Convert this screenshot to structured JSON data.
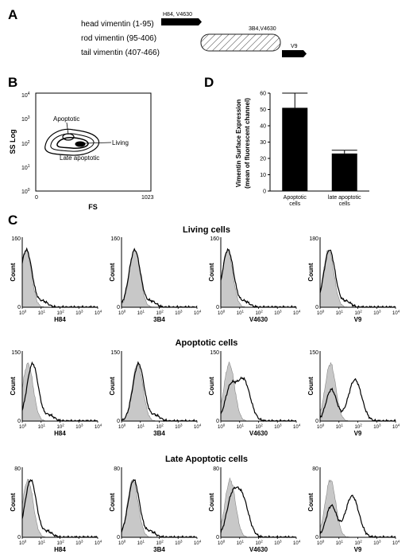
{
  "panel_labels": {
    "a": "A",
    "b": "B",
    "c": "C",
    "d": "D"
  },
  "panel_a": {
    "rows": [
      {
        "label": "head vimentin (1-95)",
        "antibody": "H84, V4630"
      },
      {
        "label": "rod vimentin (95-406)",
        "antibody": "3B4,V4630"
      },
      {
        "label": "tail vimentin (407-466)",
        "antibody": "V9"
      }
    ]
  },
  "panel_b": {
    "x_label": "FS",
    "y_label": "SS Log",
    "x_ticks": [
      "0",
      "1023"
    ],
    "y_ticks": [
      {
        "base": "10",
        "exp": "0"
      },
      {
        "base": "10",
        "exp": "1"
      },
      {
        "base": "10",
        "exp": "2"
      },
      {
        "base": "10",
        "exp": "3"
      },
      {
        "base": "10",
        "exp": "4"
      }
    ],
    "annotations": [
      "Apoptotic",
      "Living",
      "Late apoptotic"
    ]
  },
  "chart_data": [
    {
      "type": "bar",
      "panel": "D",
      "categories": [
        "Apoptotic cells",
        "late apoptotic cells"
      ],
      "category_lines": [
        [
          "Apoptotic",
          "cells"
        ],
        [
          "late apoptotic",
          "cells"
        ]
      ],
      "values": [
        51,
        23
      ],
      "errors": [
        9,
        2
      ],
      "ylabel_lines": [
        "Vimentin Surface Expression",
        "(mean of fluorescent channel)"
      ],
      "ylim": [
        0,
        60
      ],
      "yticks": [
        "0",
        "10",
        "20",
        "30",
        "40",
        "50",
        "60"
      ],
      "bar_color": "#000000"
    }
  ],
  "panel_c": {
    "x_tick_base": "10",
    "x_tick_exps": [
      "0",
      "1",
      "2",
      "3",
      "4"
    ],
    "count_label": "Count",
    "axis_min_label": "0",
    "rows": [
      {
        "title": "Living cells",
        "histograms": [
          {
            "antibody": "H84",
            "ymax": "160",
            "grey_peak": 0.2,
            "black_peak": 0.22,
            "black_second_peak": null
          },
          {
            "antibody": "3B4",
            "ymax": "160",
            "grey_peak": 0.7,
            "black_peak": 0.7,
            "black_second_peak": null
          },
          {
            "antibody": "V4630",
            "ymax": "160",
            "grey_peak": 0.35,
            "black_peak": 0.38,
            "black_second_peak": null
          },
          {
            "antibody": "V9",
            "ymax": "180",
            "grey_peak": 0.45,
            "black_peak": 0.5,
            "black_second_peak": null
          }
        ]
      },
      {
        "title": "Apoptotic cells",
        "histograms": [
          {
            "antibody": "H84",
            "ymax": "150",
            "grey_peak": 0.3,
            "black_peak": 0.55,
            "black_second_peak": null
          },
          {
            "antibody": "3B4",
            "ymax": "150",
            "grey_peak": 0.85,
            "black_peak": 0.9,
            "black_second_peak": null
          },
          {
            "antibody": "V4630",
            "ymax": "150",
            "grey_peak": 0.45,
            "black_peak": 0.5,
            "black_second_peak": 1.2
          },
          {
            "antibody": "V9",
            "ymax": "150",
            "grey_peak": 0.55,
            "black_peak": 0.6,
            "black_second_peak": 1.85
          }
        ]
      },
      {
        "title": "Late Apoptotic cells",
        "histograms": [
          {
            "antibody": "H84",
            "ymax": "80",
            "grey_peak": 0.3,
            "black_peak": 0.45,
            "black_second_peak": null
          },
          {
            "antibody": "3B4",
            "ymax": "80",
            "grey_peak": 0.6,
            "black_peak": 0.65,
            "black_second_peak": null
          },
          {
            "antibody": "V4630",
            "ymax": "80",
            "grey_peak": 0.5,
            "black_peak": 0.55,
            "black_second_peak": 1.1
          },
          {
            "antibody": "V9",
            "ymax": "80",
            "grey_peak": 0.55,
            "black_peak": 0.6,
            "black_second_peak": 1.7
          }
        ]
      }
    ]
  }
}
